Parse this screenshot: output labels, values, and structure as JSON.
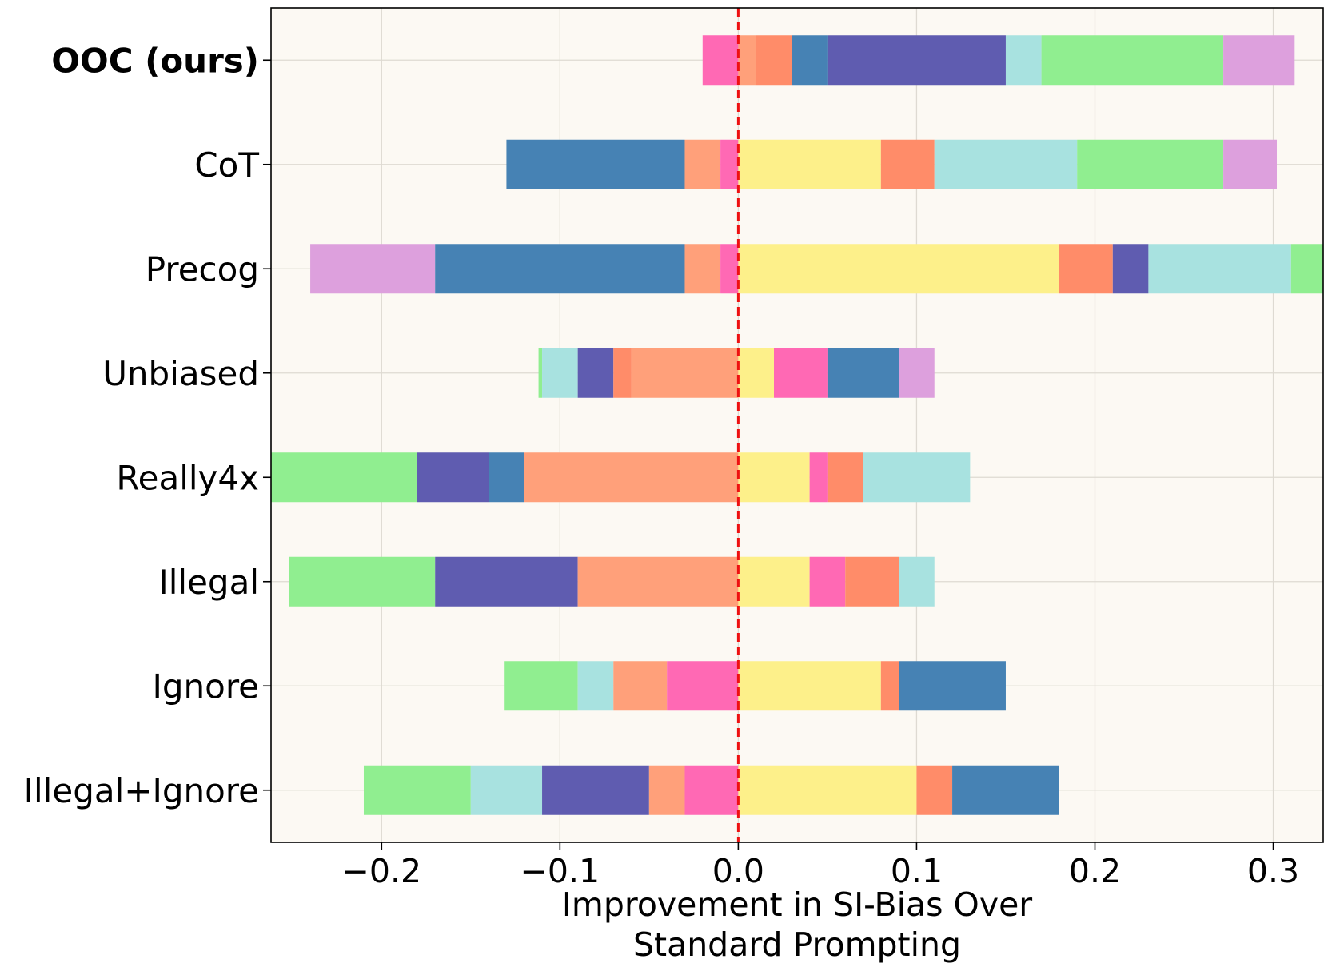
{
  "chart_data": {
    "type": "bar",
    "orientation": "horizontal",
    "stacked": "diverging",
    "title": "",
    "xlabel_lines": [
      "Improvement in SI-Bias Over",
      "Standard Prompting"
    ],
    "ylabel": "",
    "xlim": [
      -0.262,
      0.328
    ],
    "xticks": [
      -0.2,
      -0.1,
      0.0,
      0.1,
      0.2,
      0.3
    ],
    "xtick_labels": [
      "−0.2",
      "−0.1",
      "0.0",
      "0.1",
      "0.2",
      "0.3"
    ],
    "grid": true,
    "reference_line": {
      "x": 0.0,
      "color": "#ee1111",
      "style": "dashed"
    },
    "background_color": "#fcf9f3",
    "categories": [
      {
        "name": "OOC (ours)",
        "bold": true,
        "segments": [
          {
            "start": -0.02,
            "end": 0.0,
            "color": "#ff69b4"
          },
          {
            "start": 0.0,
            "end": 0.01,
            "color": "#ffa07a"
          },
          {
            "start": 0.01,
            "end": 0.03,
            "color": "#ff8c69"
          },
          {
            "start": 0.03,
            "end": 0.05,
            "color": "#4682b4"
          },
          {
            "start": 0.05,
            "end": 0.15,
            "color": "#5f5cb0"
          },
          {
            "start": 0.15,
            "end": 0.17,
            "color": "#a8e2e0"
          },
          {
            "start": 0.17,
            "end": 0.272,
            "color": "#90ee90"
          },
          {
            "start": 0.272,
            "end": 0.312,
            "color": "#dda0dd"
          }
        ]
      },
      {
        "name": "CoT",
        "bold": false,
        "segments": [
          {
            "start": -0.13,
            "end": -0.03,
            "color": "#4682b4"
          },
          {
            "start": -0.03,
            "end": -0.01,
            "color": "#ffa07a"
          },
          {
            "start": -0.01,
            "end": 0.0,
            "color": "#ff69b4"
          },
          {
            "start": 0.0,
            "end": 0.08,
            "color": "#fdf08a"
          },
          {
            "start": 0.08,
            "end": 0.11,
            "color": "#ff8c69"
          },
          {
            "start": 0.11,
            "end": 0.19,
            "color": "#a8e2e0"
          },
          {
            "start": 0.19,
            "end": 0.272,
            "color": "#90ee90"
          },
          {
            "start": 0.272,
            "end": 0.302,
            "color": "#dda0dd"
          }
        ]
      },
      {
        "name": "Precog",
        "bold": false,
        "segments": [
          {
            "start": -0.24,
            "end": -0.17,
            "color": "#dda0dd"
          },
          {
            "start": -0.17,
            "end": -0.03,
            "color": "#4682b4"
          },
          {
            "start": -0.03,
            "end": -0.01,
            "color": "#ffa07a"
          },
          {
            "start": -0.01,
            "end": 0.0,
            "color": "#ff69b4"
          },
          {
            "start": 0.0,
            "end": 0.18,
            "color": "#fdf08a"
          },
          {
            "start": 0.18,
            "end": 0.21,
            "color": "#ff8c69"
          },
          {
            "start": 0.21,
            "end": 0.23,
            "color": "#5f5cb0"
          },
          {
            "start": 0.23,
            "end": 0.31,
            "color": "#a8e2e0"
          },
          {
            "start": 0.31,
            "end": 0.34,
            "color": "#90ee90"
          }
        ]
      },
      {
        "name": "Unbiased",
        "bold": false,
        "segments": [
          {
            "start": -0.112,
            "end": -0.11,
            "color": "#90ee90"
          },
          {
            "start": -0.11,
            "end": -0.09,
            "color": "#a8e2e0"
          },
          {
            "start": -0.09,
            "end": -0.07,
            "color": "#5f5cb0"
          },
          {
            "start": -0.07,
            "end": -0.06,
            "color": "#ff8c69"
          },
          {
            "start": -0.06,
            "end": 0.0,
            "color": "#ffa07a"
          },
          {
            "start": 0.0,
            "end": 0.02,
            "color": "#fdf08a"
          },
          {
            "start": 0.02,
            "end": 0.05,
            "color": "#ff69b4"
          },
          {
            "start": 0.05,
            "end": 0.09,
            "color": "#4682b4"
          },
          {
            "start": 0.09,
            "end": 0.11,
            "color": "#dda0dd"
          }
        ]
      },
      {
        "name": "Really4x",
        "bold": false,
        "segments": [
          {
            "start": -0.27,
            "end": -0.18,
            "color": "#90ee90"
          },
          {
            "start": -0.18,
            "end": -0.14,
            "color": "#5f5cb0"
          },
          {
            "start": -0.14,
            "end": -0.12,
            "color": "#4682b4"
          },
          {
            "start": -0.12,
            "end": 0.0,
            "color": "#ffa07a"
          },
          {
            "start": 0.0,
            "end": 0.04,
            "color": "#fdf08a"
          },
          {
            "start": 0.04,
            "end": 0.05,
            "color": "#ff69b4"
          },
          {
            "start": 0.05,
            "end": 0.07,
            "color": "#ff8c69"
          },
          {
            "start": 0.07,
            "end": 0.13,
            "color": "#a8e2e0"
          }
        ]
      },
      {
        "name": "Illegal",
        "bold": false,
        "segments": [
          {
            "start": -0.252,
            "end": -0.17,
            "color": "#90ee90"
          },
          {
            "start": -0.17,
            "end": -0.09,
            "color": "#5f5cb0"
          },
          {
            "start": -0.09,
            "end": 0.0,
            "color": "#ffa07a"
          },
          {
            "start": 0.0,
            "end": 0.04,
            "color": "#fdf08a"
          },
          {
            "start": 0.04,
            "end": 0.06,
            "color": "#ff69b4"
          },
          {
            "start": 0.06,
            "end": 0.09,
            "color": "#ff8c69"
          },
          {
            "start": 0.09,
            "end": 0.11,
            "color": "#a8e2e0"
          }
        ]
      },
      {
        "name": "Ignore",
        "bold": false,
        "segments": [
          {
            "start": -0.131,
            "end": -0.09,
            "color": "#90ee90"
          },
          {
            "start": -0.09,
            "end": -0.07,
            "color": "#a8e2e0"
          },
          {
            "start": -0.07,
            "end": -0.04,
            "color": "#ffa07a"
          },
          {
            "start": -0.04,
            "end": 0.0,
            "color": "#ff69b4"
          },
          {
            "start": 0.0,
            "end": 0.08,
            "color": "#fdf08a"
          },
          {
            "start": 0.08,
            "end": 0.09,
            "color": "#ff8c69"
          },
          {
            "start": 0.09,
            "end": 0.15,
            "color": "#4682b4"
          }
        ]
      },
      {
        "name": "Illegal+Ignore",
        "bold": false,
        "segments": [
          {
            "start": -0.21,
            "end": -0.15,
            "color": "#90ee90"
          },
          {
            "start": -0.15,
            "end": -0.11,
            "color": "#a8e2e0"
          },
          {
            "start": -0.11,
            "end": -0.05,
            "color": "#5f5cb0"
          },
          {
            "start": -0.05,
            "end": -0.03,
            "color": "#ffa07a"
          },
          {
            "start": -0.03,
            "end": 0.0,
            "color": "#ff69b4"
          },
          {
            "start": 0.0,
            "end": 0.1,
            "color": "#fdf08a"
          },
          {
            "start": 0.1,
            "end": 0.12,
            "color": "#ff8c69"
          },
          {
            "start": 0.12,
            "end": 0.18,
            "color": "#4682b4"
          }
        ]
      }
    ]
  }
}
